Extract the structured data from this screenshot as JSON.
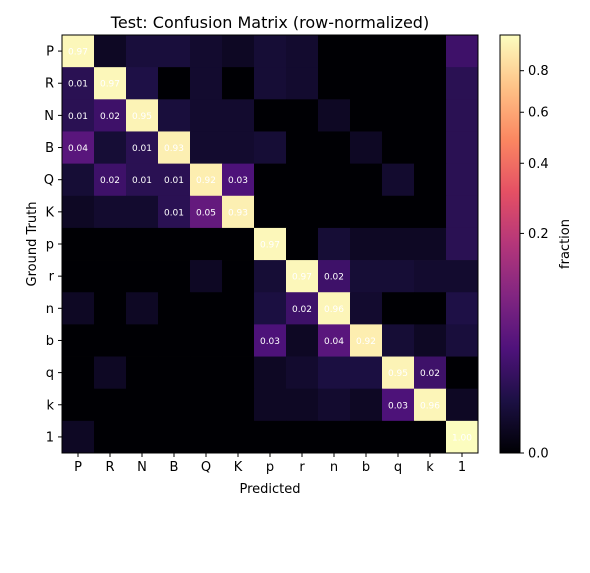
{
  "chart_data": {
    "type": "heatmap",
    "title": "Test: Confusion Matrix (row-normalized)",
    "xlabel": "Predicted",
    "ylabel": "Ground Truth",
    "x_categories": [
      "P",
      "R",
      "N",
      "B",
      "Q",
      "K",
      "p",
      "r",
      "n",
      "b",
      "q",
      "k",
      "1"
    ],
    "y_categories": [
      "P",
      "R",
      "N",
      "B",
      "Q",
      "K",
      "p",
      "r",
      "n",
      "b",
      "q",
      "k",
      "1"
    ],
    "values": [
      [
        0.97,
        0.001,
        0.004,
        0.004,
        0.002,
        0.001,
        0.003,
        0.002,
        0.0,
        0.0,
        0.0,
        0.0,
        0.02
      ],
      [
        0.01,
        0.97,
        0.006,
        0.0,
        0.002,
        0.0,
        0.003,
        0.002,
        0.0,
        0.0,
        0.0,
        0.0,
        0.01
      ],
      [
        0.01,
        0.02,
        0.95,
        0.004,
        0.002,
        0.002,
        0.0,
        0.0,
        0.001,
        0.0,
        0.0,
        0.0,
        0.01
      ],
      [
        0.04,
        0.003,
        0.01,
        0.93,
        0.002,
        0.002,
        0.003,
        0.0,
        0.0,
        0.001,
        0.0,
        0.0,
        0.01
      ],
      [
        0.003,
        0.02,
        0.01,
        0.01,
        0.92,
        0.03,
        0.0,
        0.0,
        0.0,
        0.0,
        0.002,
        0.0,
        0.01
      ],
      [
        0.001,
        0.002,
        0.002,
        0.01,
        0.05,
        0.93,
        0.0,
        0.0,
        0.0,
        0.0,
        0.0,
        0.0,
        0.01
      ],
      [
        0.0,
        0.0,
        0.0,
        0.0,
        0.0,
        0.0,
        0.97,
        0.0,
        0.003,
        0.001,
        0.001,
        0.001,
        0.01
      ],
      [
        0.0,
        0.0,
        0.0,
        0.0,
        0.001,
        0.0,
        0.003,
        0.97,
        0.02,
        0.003,
        0.003,
        0.002,
        0.002
      ],
      [
        0.001,
        0.0,
        0.001,
        0.0,
        0.0,
        0.0,
        0.005,
        0.02,
        0.96,
        0.002,
        0.0,
        0.0,
        0.006
      ],
      [
        0.0,
        0.0,
        0.0,
        0.0,
        0.0,
        0.0,
        0.03,
        0.001,
        0.04,
        0.92,
        0.003,
        0.001,
        0.004
      ],
      [
        0.0,
        0.001,
        0.0,
        0.0,
        0.0,
        0.0,
        0.001,
        0.002,
        0.005,
        0.005,
        0.95,
        0.02,
        0.0
      ],
      [
        0.0,
        0.0,
        0.0,
        0.0,
        0.0,
        0.0,
        0.001,
        0.001,
        0.002,
        0.001,
        0.03,
        0.96,
        0.001
      ],
      [
        0.001,
        0.0,
        0.0,
        0.0,
        0.0,
        0.0,
        0.0,
        0.0,
        0.0,
        0.0,
        0.0,
        0.0,
        1.0
      ]
    ],
    "annotations": [
      {
        "row": 0,
        "col": 0,
        "text": "0.97"
      },
      {
        "row": 1,
        "col": 0,
        "text": "0.01"
      },
      {
        "row": 1,
        "col": 1,
        "text": "0.97"
      },
      {
        "row": 2,
        "col": 0,
        "text": "0.01"
      },
      {
        "row": 2,
        "col": 1,
        "text": "0.02"
      },
      {
        "row": 2,
        "col": 2,
        "text": "0.95"
      },
      {
        "row": 3,
        "col": 0,
        "text": "0.04"
      },
      {
        "row": 3,
        "col": 2,
        "text": "0.01"
      },
      {
        "row": 3,
        "col": 3,
        "text": "0.93"
      },
      {
        "row": 4,
        "col": 1,
        "text": "0.02"
      },
      {
        "row": 4,
        "col": 2,
        "text": "0.01"
      },
      {
        "row": 4,
        "col": 3,
        "text": "0.01"
      },
      {
        "row": 4,
        "col": 4,
        "text": "0.92"
      },
      {
        "row": 4,
        "col": 5,
        "text": "0.03"
      },
      {
        "row": 5,
        "col": 3,
        "text": "0.01"
      },
      {
        "row": 5,
        "col": 4,
        "text": "0.05"
      },
      {
        "row": 5,
        "col": 5,
        "text": "0.93"
      },
      {
        "row": 6,
        "col": 6,
        "text": "0.97"
      },
      {
        "row": 7,
        "col": 7,
        "text": "0.97"
      },
      {
        "row": 7,
        "col": 8,
        "text": "0.02"
      },
      {
        "row": 8,
        "col": 7,
        "text": "0.02"
      },
      {
        "row": 8,
        "col": 8,
        "text": "0.96"
      },
      {
        "row": 9,
        "col": 6,
        "text": "0.03"
      },
      {
        "row": 9,
        "col": 8,
        "text": "0.04"
      },
      {
        "row": 9,
        "col": 9,
        "text": "0.92"
      },
      {
        "row": 10,
        "col": 10,
        "text": "0.95"
      },
      {
        "row": 10,
        "col": 11,
        "text": "0.02"
      },
      {
        "row": 11,
        "col": 10,
        "text": "0.03"
      },
      {
        "row": 11,
        "col": 11,
        "text": "0.96"
      },
      {
        "row": 12,
        "col": 12,
        "text": "1.00"
      }
    ],
    "colorbar": {
      "label": "fraction",
      "scale": "power-norm",
      "range": [
        0.0,
        1.0
      ],
      "ticks": [
        {
          "value": 0.0,
          "label": "0.0"
        },
        {
          "value": 0.2,
          "label": "0.2"
        },
        {
          "value": 0.4,
          "label": "0.4"
        },
        {
          "value": 0.6,
          "label": "0.6"
        },
        {
          "value": 0.8,
          "label": "0.8"
        }
      ]
    },
    "colormap": "magma",
    "colormap_stops": [
      "#000004",
      "#1c1044",
      "#4f127b",
      "#812581",
      "#b5367a",
      "#e55064",
      "#fb8761",
      "#fec287",
      "#fcfdbf"
    ],
    "annotation_colors": {
      "on_dark": "#ffffff",
      "on_light": "#ffffff"
    },
    "grid": false,
    "legend": "none"
  }
}
